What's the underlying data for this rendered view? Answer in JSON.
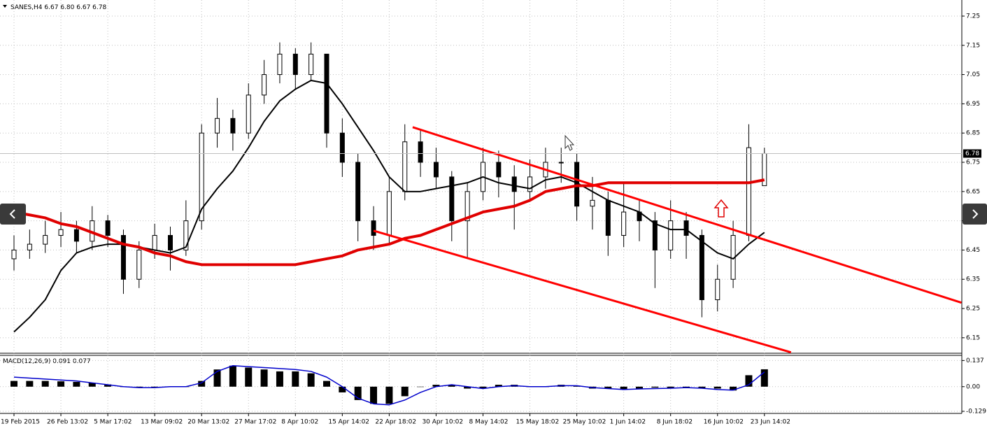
{
  "chart_data": [
    {
      "type": "candlestick",
      "title": "SANES,H4",
      "categories": [
        "19 Feb 2015",
        null,
        null,
        "26 Feb 13:02",
        null,
        null,
        "5 Mar 17:02",
        null,
        null,
        "13 Mar 09:02",
        null,
        null,
        "20 Mar 13:02",
        null,
        null,
        "27 Mar 17:02",
        null,
        null,
        "8 Apr 10:02",
        null,
        null,
        "15 Apr 14:02",
        null,
        null,
        "22 Apr 18:02",
        null,
        null,
        "30 Apr 10:02",
        null,
        null,
        "8 May 14:02",
        null,
        null,
        "15 May 18:02",
        null,
        null,
        "25 May 10:02",
        null,
        null,
        "1 Jun 14:02",
        null,
        null,
        "8 Jun 18:02",
        null,
        null,
        "16 Jun 10:02",
        null,
        null,
        "23 Jun 14:02"
      ],
      "ohlc": [
        [
          6.42,
          6.5,
          6.38,
          6.45
        ],
        [
          6.45,
          6.52,
          6.42,
          6.47
        ],
        [
          6.47,
          6.55,
          6.44,
          6.5
        ],
        [
          6.5,
          6.58,
          6.46,
          6.52
        ],
        [
          6.52,
          6.55,
          6.44,
          6.48
        ],
        [
          6.48,
          6.6,
          6.45,
          6.55
        ],
        [
          6.55,
          6.57,
          6.46,
          6.5
        ],
        [
          6.5,
          6.52,
          6.3,
          6.35
        ],
        [
          6.35,
          6.48,
          6.32,
          6.45
        ],
        [
          6.45,
          6.54,
          6.42,
          6.5
        ],
        [
          6.5,
          6.53,
          6.38,
          6.45
        ],
        [
          6.45,
          6.62,
          6.43,
          6.55
        ],
        [
          6.55,
          6.88,
          6.52,
          6.85
        ],
        [
          6.85,
          6.97,
          6.8,
          6.9
        ],
        [
          6.9,
          6.93,
          6.79,
          6.85
        ],
        [
          6.85,
          7.02,
          6.83,
          6.98
        ],
        [
          6.98,
          7.1,
          6.95,
          7.05
        ],
        [
          7.05,
          7.16,
          7.02,
          7.12
        ],
        [
          7.12,
          7.14,
          7.0,
          7.05
        ],
        [
          7.05,
          7.16,
          7.03,
          7.12
        ],
        [
          7.12,
          7.12,
          6.8,
          6.85
        ],
        [
          6.85,
          6.9,
          6.7,
          6.75
        ],
        [
          6.75,
          6.78,
          6.48,
          6.55
        ],
        [
          6.55,
          6.6,
          6.45,
          6.5
        ],
        [
          6.5,
          6.7,
          6.47,
          6.65
        ],
        [
          6.65,
          6.88,
          6.62,
          6.82
        ],
        [
          6.82,
          6.86,
          6.7,
          6.75
        ],
        [
          6.75,
          6.8,
          6.66,
          6.7
        ],
        [
          6.7,
          6.72,
          6.48,
          6.55
        ],
        [
          6.55,
          6.68,
          6.42,
          6.65
        ],
        [
          6.65,
          6.8,
          6.62,
          6.75
        ],
        [
          6.75,
          6.79,
          6.63,
          6.7
        ],
        [
          6.7,
          6.74,
          6.52,
          6.65
        ],
        [
          6.65,
          6.76,
          6.62,
          6.7
        ],
        [
          6.7,
          6.8,
          6.66,
          6.75
        ],
        [
          6.75,
          6.8,
          6.68,
          6.75
        ],
        [
          6.75,
          6.78,
          6.55,
          6.6
        ],
        [
          6.6,
          6.7,
          6.52,
          6.62
        ],
        [
          6.62,
          6.65,
          6.43,
          6.5
        ],
        [
          6.5,
          6.68,
          6.46,
          6.58
        ],
        [
          6.58,
          6.62,
          6.48,
          6.55
        ],
        [
          6.55,
          6.58,
          6.32,
          6.45
        ],
        [
          6.45,
          6.62,
          6.42,
          6.55
        ],
        [
          6.55,
          6.58,
          6.42,
          6.5
        ],
        [
          6.5,
          6.52,
          6.22,
          6.28
        ],
        [
          6.28,
          6.4,
          6.24,
          6.35
        ],
        [
          6.35,
          6.55,
          6.32,
          6.5
        ],
        [
          6.5,
          6.88,
          6.48,
          6.8
        ],
        [
          6.67,
          6.8,
          6.67,
          6.78
        ]
      ],
      "value_labels": [
        "6.67",
        "6.80",
        "6.67",
        "6.78"
      ],
      "series": [
        {
          "color": "#000000",
          "values": [
            6.17,
            6.22,
            6.28,
            6.38,
            6.44,
            6.46,
            6.47,
            6.47,
            6.46,
            6.45,
            6.44,
            6.46,
            6.59,
            6.66,
            6.72,
            6.8,
            6.89,
            6.96,
            7.0,
            7.03,
            7.02,
            6.95,
            6.87,
            6.79,
            6.7,
            6.65,
            6.65,
            6.66,
            6.67,
            6.68,
            6.7,
            6.68,
            6.67,
            6.66,
            6.69,
            6.7,
            6.68,
            6.65,
            6.62,
            6.6,
            6.58,
            6.54,
            6.52,
            6.52,
            6.48,
            6.44,
            6.42,
            6.47,
            6.51
          ]
        },
        {
          "color": "#e00000",
          "values": [
            6.58,
            6.57,
            6.56,
            6.54,
            6.53,
            6.51,
            6.49,
            6.47,
            6.46,
            6.44,
            6.43,
            6.41,
            6.4,
            6.4,
            6.4,
            6.4,
            6.4,
            6.4,
            6.4,
            6.41,
            6.42,
            6.43,
            6.45,
            6.46,
            6.47,
            6.49,
            6.5,
            6.52,
            6.54,
            6.56,
            6.58,
            6.59,
            6.6,
            6.62,
            6.65,
            6.66,
            6.67,
            6.67,
            6.68,
            6.68,
            6.68,
            6.68,
            6.68,
            6.68,
            6.68,
            6.68,
            6.68,
            6.68,
            6.69
          ]
        }
      ],
      "trend_lines": [
        {
          "color": "#ff0000",
          "x": [
            25.5,
            60.6
          ],
          "y": [
            6.87,
            6.27
          ]
        },
        {
          "color": "#ff0000",
          "x": [
            23.0,
            49.7
          ],
          "y": [
            6.516,
            6.1
          ]
        }
      ],
      "ylim": [
        6.097,
        7.305
      ],
      "yticks": [
        6.15,
        6.25,
        6.35,
        6.45,
        6.55,
        6.65,
        6.75,
        6.85,
        6.95,
        7.05,
        7.15,
        7.25
      ],
      "grid": true
    },
    {
      "type": "macd",
      "title": "MACD(12,26,9)",
      "series": [
        {
          "style": "histogram",
          "color": "#000000",
          "values": [
            0.03,
            0.03,
            0.03,
            0.028,
            0.025,
            0.02,
            0.012,
            0.0,
            -0.005,
            -0.005,
            -0.002,
            0.0,
            0.03,
            0.09,
            0.11,
            0.1,
            0.09,
            0.08,
            0.08,
            0.07,
            0.03,
            -0.03,
            -0.07,
            -0.09,
            -0.09,
            -0.05,
            0.0,
            0.01,
            0.01,
            -0.01,
            -0.01,
            0.01,
            0.01,
            0.0,
            0.0,
            0.01,
            0.005,
            -0.01,
            -0.01,
            -0.015,
            -0.01,
            -0.005,
            -0.01,
            -0.005,
            -0.01,
            -0.01,
            -0.02,
            0.06,
            0.091
          ]
        },
        {
          "style": "line",
          "color": "#0000cc",
          "values": [
            0.05,
            0.045,
            0.04,
            0.035,
            0.03,
            0.02,
            0.01,
            0.0,
            -0.005,
            -0.005,
            0.0,
            0.0,
            0.02,
            0.08,
            0.11,
            0.105,
            0.1,
            0.095,
            0.09,
            0.08,
            0.05,
            0.0,
            -0.06,
            -0.09,
            -0.095,
            -0.07,
            -0.03,
            0.0,
            0.01,
            0.0,
            -0.01,
            0.0,
            0.005,
            0.0,
            0.0,
            0.005,
            0.005,
            -0.005,
            -0.01,
            -0.015,
            -0.012,
            -0.01,
            -0.008,
            -0.005,
            -0.008,
            -0.015,
            -0.018,
            0.01,
            0.077
          ]
        }
      ],
      "ylim": [
        -0.14,
        0.164
      ],
      "yticks": [
        -0.129,
        {
          "value": 0,
          "label": "0.00"
        },
        0.137
      ]
    }
  ]
}
